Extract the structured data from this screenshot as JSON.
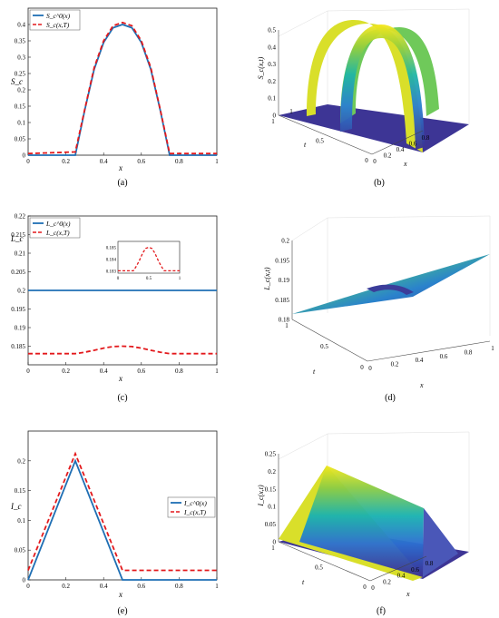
{
  "colors": {
    "initial": "#1f6fb4",
    "final": "#e3191c",
    "frame": "#222222",
    "grid": "#dddddd"
  },
  "panels": [
    {
      "id": "a",
      "caption": "(a)",
      "ylabel": "S_c",
      "xlabel": "x",
      "xlim": [
        0,
        1
      ],
      "ylim": [
        0,
        0.45
      ],
      "xticks": [
        0,
        0.2,
        0.4,
        0.6,
        0.8,
        1
      ],
      "yticks": [
        0,
        0.05,
        0.1,
        0.15,
        0.2,
        0.25,
        0.3,
        0.35,
        0.4
      ],
      "legend": [
        "S_c^0(x)",
        "S_c(x,T)"
      ],
      "legend_pos": "top-left"
    },
    {
      "id": "b",
      "caption": "(b)",
      "zlabel": "S_c(x,t)",
      "tlabel": "t",
      "xlabel": "x",
      "zticks": [
        0,
        0.1,
        0.2,
        0.3,
        0.4,
        0.5
      ],
      "tticks": [
        0,
        0.5,
        1
      ],
      "xticks": [
        0,
        0.2,
        0.4,
        0.6,
        0.8
      ],
      "xtick_end": "1"
    },
    {
      "id": "c",
      "caption": "(c)",
      "ylabel": "L_c",
      "xlabel": "x",
      "xlim": [
        0,
        1
      ],
      "ylim": [
        0.18,
        0.22
      ],
      "xticks": [
        0,
        0.2,
        0.4,
        0.6,
        0.8,
        1
      ],
      "yticks": [
        0.185,
        0.19,
        0.195,
        0.2,
        0.205,
        0.21,
        0.215,
        0.22
      ],
      "legend": [
        "L_c^0(x)",
        "L_c(x,T)"
      ],
      "legend_pos": "top-left",
      "inset": {
        "xticks": [
          0,
          0.5,
          1
        ],
        "yticks": [
          0.183,
          0.184,
          0.185
        ],
        "ylim": [
          0.1828,
          0.1855
        ]
      }
    },
    {
      "id": "d",
      "caption": "(d)",
      "zlabel": "L_c(x,t)",
      "tlabel": "t",
      "xlabel": "x",
      "zticks": [
        0.18,
        0.185,
        0.19,
        0.195,
        0.2
      ],
      "tticks": [
        0,
        0.5,
        1
      ],
      "xticks": [
        0,
        0.2,
        0.4,
        0.6,
        0.8,
        1
      ]
    },
    {
      "id": "e",
      "caption": "(e)",
      "ylabel": "I_c",
      "xlabel": "x",
      "xlim": [
        0,
        1
      ],
      "ylim": [
        0,
        0.25
      ],
      "xticks": [
        0,
        0.2,
        0.4,
        0.6,
        0.8,
        1
      ],
      "yticks": [
        0,
        0.05,
        0.1,
        0.15,
        0.2
      ],
      "legend": [
        "I_c^0(x)",
        "I_c(x,T)"
      ],
      "legend_pos": "center-right"
    },
    {
      "id": "f",
      "caption": "(f)",
      "zlabel": "I_c(x,t)",
      "tlabel": "t",
      "xlabel": "x",
      "zticks": [
        0,
        0.05,
        0.1,
        0.15,
        0.2,
        0.25
      ],
      "tticks": [
        0,
        0.5,
        1
      ],
      "xticks": [
        0,
        0.2,
        0.4,
        0.6,
        0.8
      ]
    }
  ],
  "chart_data": [
    {
      "type": "line",
      "panel": "a",
      "xlim": [
        0,
        1
      ],
      "ylim": [
        0,
        0.45
      ],
      "series": [
        {
          "name": "S_c^0(x)",
          "style": "solid",
          "x": [
            0,
            0.25,
            0.25,
            0.3,
            0.35,
            0.4,
            0.45,
            0.5,
            0.55,
            0.6,
            0.65,
            0.7,
            0.75,
            0.75,
            1
          ],
          "y": [
            0,
            0,
            0,
            0.138,
            0.263,
            0.345,
            0.39,
            0.4,
            0.39,
            0.345,
            0.263,
            0.138,
            0,
            0,
            0
          ]
        },
        {
          "name": "S_c(x,T)",
          "style": "dashed",
          "x": [
            0,
            0.25,
            0.25,
            0.3,
            0.35,
            0.4,
            0.45,
            0.5,
            0.55,
            0.6,
            0.65,
            0.7,
            0.75,
            0.75,
            1
          ],
          "y": [
            0.005,
            0.01,
            0.01,
            0.14,
            0.268,
            0.35,
            0.396,
            0.406,
            0.396,
            0.35,
            0.268,
            0.14,
            0.005,
            0.005,
            0.005
          ]
        }
      ]
    },
    {
      "type": "surface",
      "panel": "b",
      "zlim": [
        0,
        0.5
      ],
      "x": [
        0,
        0.2,
        0.25,
        0.3,
        0.35,
        0.4,
        0.45,
        0.5,
        0.55,
        0.6,
        0.65,
        0.7,
        0.75,
        0.8,
        1
      ],
      "t": [
        0,
        0.5,
        1
      ],
      "z_profile": [
        0,
        0,
        0,
        0.138,
        0.263,
        0.345,
        0.39,
        0.4,
        0.39,
        0.345,
        0.263,
        0.138,
        0,
        0,
        0
      ]
    },
    {
      "type": "line",
      "panel": "c",
      "xlim": [
        0,
        1
      ],
      "ylim": [
        0.18,
        0.22
      ],
      "series": [
        {
          "name": "L_c^0(x)",
          "style": "solid",
          "x": [
            0,
            1
          ],
          "y": [
            0.2,
            0.2
          ]
        },
        {
          "name": "L_c(x,T)",
          "style": "dashed",
          "x": [
            0,
            0.25,
            0.3,
            0.35,
            0.4,
            0.45,
            0.5,
            0.55,
            0.6,
            0.65,
            0.7,
            0.75,
            1
          ],
          "y": [
            0.183,
            0.183,
            0.1834,
            0.1839,
            0.1845,
            0.1849,
            0.185,
            0.1849,
            0.1845,
            0.1839,
            0.1834,
            0.183,
            0.183
          ]
        }
      ]
    },
    {
      "type": "surface",
      "panel": "d",
      "zlim": [
        0.18,
        0.2
      ],
      "x": [
        0,
        0.25,
        0.5,
        0.75,
        1
      ],
      "t": [
        0,
        0.5,
        1
      ],
      "z_t0": [
        0.2,
        0.2,
        0.2,
        0.2,
        0.2
      ],
      "z_t1": [
        0.183,
        0.183,
        0.185,
        0.183,
        0.183
      ]
    },
    {
      "type": "line",
      "panel": "e",
      "xlim": [
        0,
        1
      ],
      "ylim": [
        0,
        0.25
      ],
      "series": [
        {
          "name": "I_c^0(x)",
          "style": "solid",
          "x": [
            0,
            0.25,
            0.5,
            1
          ],
          "y": [
            0,
            0.2,
            0,
            0
          ]
        },
        {
          "name": "I_c(x,T)",
          "style": "dashed",
          "x": [
            0,
            0.25,
            0.5,
            1
          ],
          "y": [
            0.016,
            0.212,
            0.016,
            0.016
          ]
        }
      ]
    },
    {
      "type": "surface",
      "panel": "f",
      "zlim": [
        0,
        0.25
      ],
      "x": [
        0,
        0.25,
        0.5,
        1
      ],
      "t": [
        0,
        0.5,
        1
      ],
      "z_profile": [
        0,
        0.2,
        0,
        0
      ]
    }
  ]
}
